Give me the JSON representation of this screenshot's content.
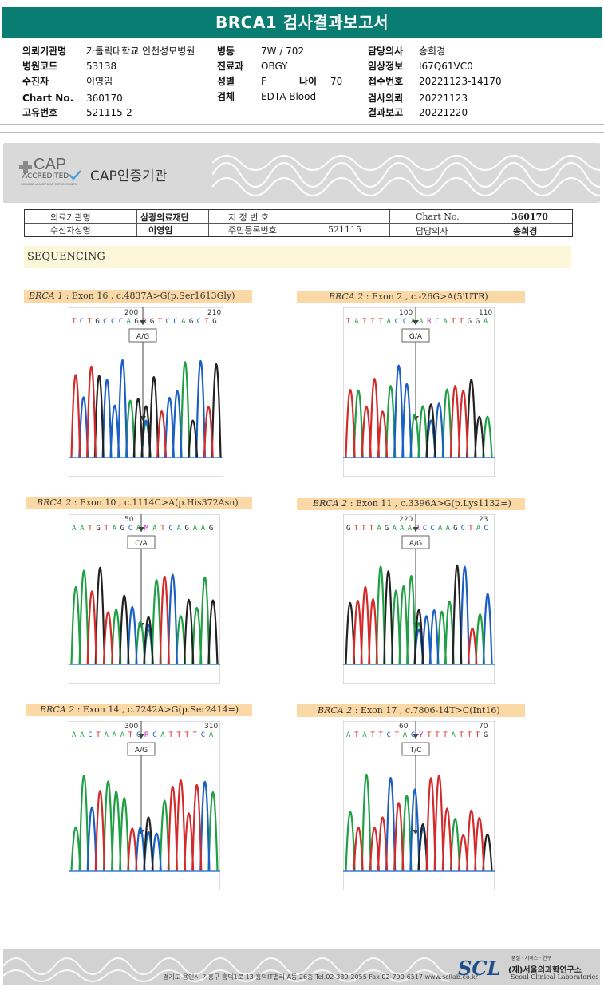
{
  "report_title": "BRCA1 검사결과보고서",
  "patient_info": {
    "col1": [
      {
        "label": "의뢰기관명",
        "value": "가톨릭대학교 인천성모병원"
      },
      {
        "label": "병원코드",
        "value": "53138"
      },
      {
        "label": "수진자",
        "value": "이영임"
      },
      {
        "label": "Chart No.",
        "value": "360170"
      },
      {
        "label": "고유번호",
        "value": "521115-2"
      }
    ],
    "col2": [
      {
        "label": "병동",
        "value": "7W / 702"
      },
      {
        "label": "진료과",
        "value": "OBGY"
      },
      {
        "label": "성별",
        "value": "F"
      },
      {
        "label": "검체",
        "value": "EDTA Blood"
      }
    ],
    "age": {
      "label": "나이",
      "value": "70"
    },
    "col3": [
      {
        "label": "담당의사",
        "value": "송희경"
      },
      {
        "label": "임상정보",
        "value": "I67Q61VC0"
      },
      {
        "label": "접수번호",
        "value": "20221123-14170"
      },
      {
        "label": "검사의뢰",
        "value": "20221123"
      },
      {
        "label": "결과보고",
        "value": "20221220"
      }
    ]
  },
  "cap": {
    "logo_main": "CAP",
    "logo_sub": "ACCREDITED",
    "logo_small": "COLLEGE of AMERICAN PATHOLOGISTS",
    "title": "CAP인증기관"
  },
  "cap_table": {
    "row1": [
      "의료기관명",
      "삼광의료재단",
      "지 정 번 호",
      "",
      "Chart No.",
      "360170"
    ],
    "row2": [
      "수신자성명",
      "이영임",
      "주민등록번호",
      "521115",
      "담당의사",
      "송희경"
    ]
  },
  "section_title": "SEQUENCING",
  "variants": [
    {
      "gene": "BRCA 1",
      "desc": " : Exon 16 , c.4837A>G(p.Ser1613Gly)",
      "pos_left": "200",
      "pos_right": "210",
      "seq": "T C T G C C C A G R G T C C A G C T G",
      "call": "A/G"
    },
    {
      "gene": "BRCA 2",
      "desc": " : Exon 2 , c.-26G>A(5'UTR)",
      "pos_left": "100",
      "pos_right": "110",
      "seq": "T A T T T A C C A A R C A T T G G A",
      "call": "G/A"
    },
    {
      "gene": "BRCA 2",
      "desc": " : Exon 10 , c.1114C>A(p.His372Asn)",
      "pos_left": "50",
      "pos_right": "",
      "seq": "A A T G T A G C A M A T C A G A A G",
      "call": "C/A"
    },
    {
      "gene": "BRCA 2",
      "desc": " : Exon 11 , c.3396A>G(p.Lys1132=)",
      "pos_left": "220",
      "pos_right": "23",
      "seq": "G T T T A G A A A R C C A A G C T A C",
      "call": "A/G"
    },
    {
      "gene": "BRCA 2",
      "desc": " : Exon 14 , c.7242A>G(p.Ser2414=)",
      "pos_left": "300",
      "pos_right": "310",
      "seq": "A A C T A A A T C R C A T T T T C A",
      "call": "A/G"
    },
    {
      "gene": "BRCA 2",
      "desc": " : Exon 17 , c.7806-14T>C(Int16)",
      "pos_left": "60",
      "pos_right": "70",
      "seq": "A T A T T C T A C Y T T T A T T T G",
      "call": "T/C"
    }
  ],
  "footer": {
    "address": "경기도 용인시 기흥구 흥덕1로 13 흥덕IT밸리 A동 26층  Tel.02-330-2055  Fax.02-790-6517  www.scllab.co.kr",
    "logo": "SCL",
    "sub": "품질 · 서비스 · 연구",
    "name_kr": "(재)서울의과학연구소",
    "name_en": "Seoul Clinical Laboratories"
  },
  "colors": {
    "header_bg": "#0a7d72",
    "A": "#1fa045",
    "C": "#1a5fc4",
    "G": "#222222",
    "T": "#d42a2a",
    "label_bg": "#fbd9a6"
  }
}
